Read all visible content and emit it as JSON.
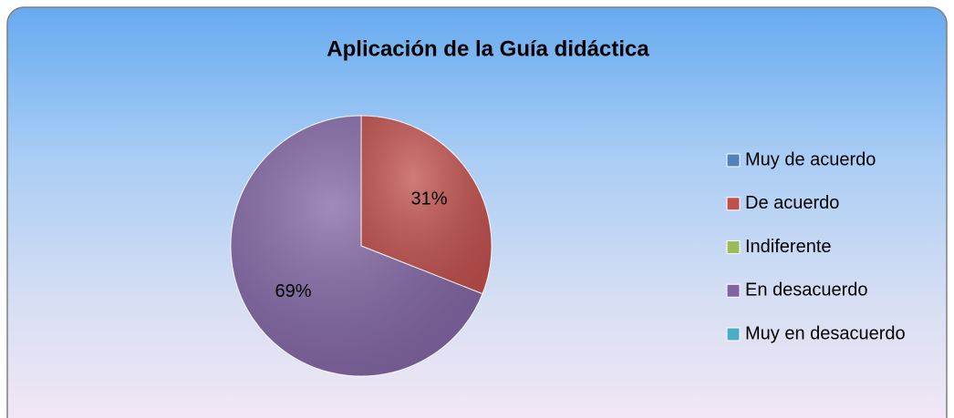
{
  "chart_data": {
    "type": "pie",
    "title": "Aplicación de la Guía didáctica",
    "categories": [
      "Muy de acuerdo",
      "De acuerdo",
      "Indiferente",
      "En desacuerdo",
      "Muy en desacuerdo"
    ],
    "values": [
      0,
      31,
      0,
      69,
      0
    ],
    "value_labels": [
      null,
      "31%",
      null,
      "69%",
      null
    ],
    "colors": [
      "#4f81bd",
      "#c0504d",
      "#9bbb59",
      "#8064a2",
      "#4bacc6"
    ],
    "legend": "right"
  }
}
